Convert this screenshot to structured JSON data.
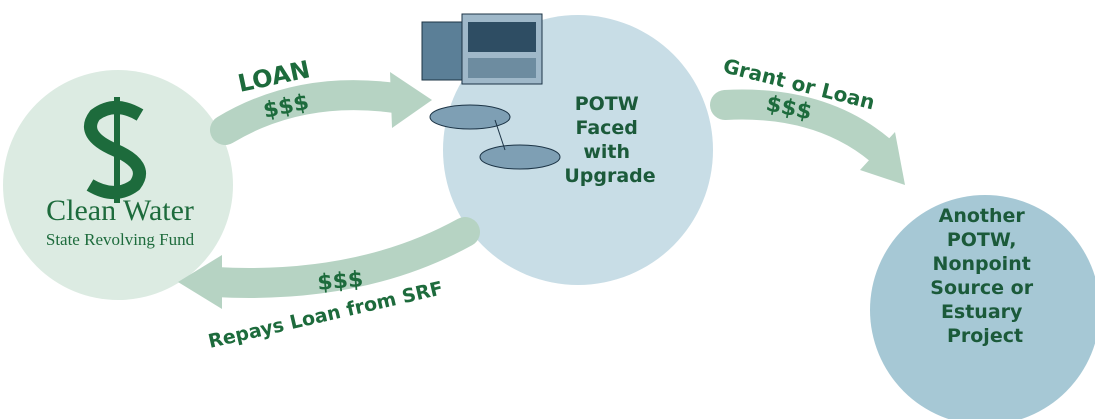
{
  "nodes": [
    {
      "label": [
        "Clean Water"
      ],
      "sublabel": "State Revolving Fund"
    },
    {
      "label": [
        "POTW",
        "Faced",
        "with",
        "Upgrade"
      ]
    },
    {
      "label": [
        "Another",
        "POTW,",
        "Nonpoint",
        "Source or",
        "Estuary",
        "Project"
      ]
    }
  ],
  "arrows": [
    {
      "label": "LOAN",
      "amount": "$$$"
    },
    {
      "label": "Grant or Loan",
      "amount": "$$$"
    },
    {
      "label": "Repays Loan from SRF",
      "amount": "$$$"
    }
  ]
}
